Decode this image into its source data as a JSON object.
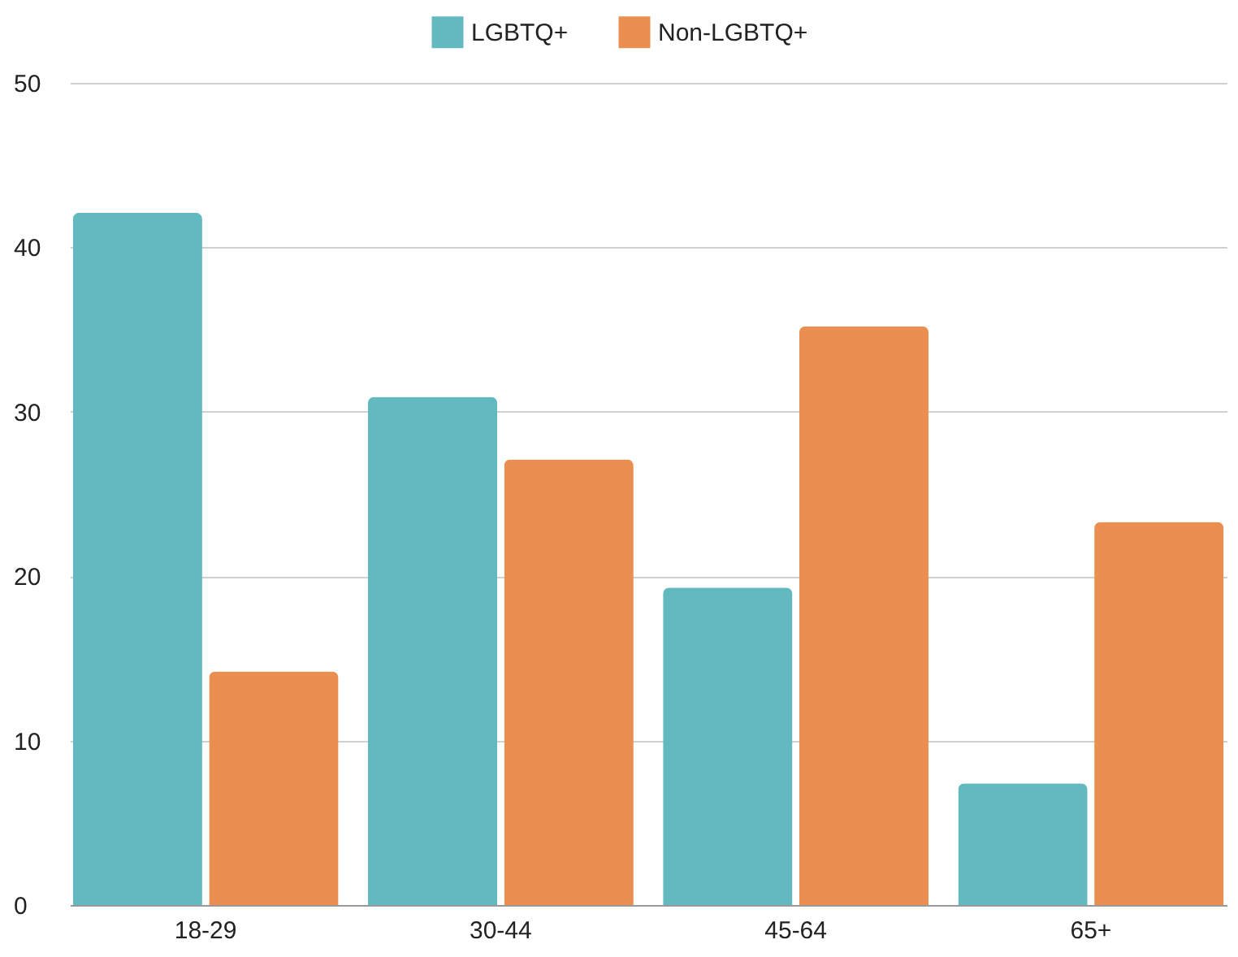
{
  "chart_data": {
    "type": "bar",
    "categories": [
      "18-29",
      "30-44",
      "45-64",
      "65+"
    ],
    "series": [
      {
        "name": "LGBTQ+",
        "color": "#62b9c0",
        "values": [
          42.1,
          30.9,
          19.3,
          7.4
        ]
      },
      {
        "name": "Non-LGBTQ+",
        "color": "#ea8f50",
        "values": [
          14.2,
          27.1,
          35.2,
          23.3
        ]
      }
    ],
    "ylim": [
      0,
      50
    ],
    "yticks": [
      0,
      10,
      20,
      30,
      40,
      50
    ],
    "grid": "y",
    "legend": "top"
  }
}
